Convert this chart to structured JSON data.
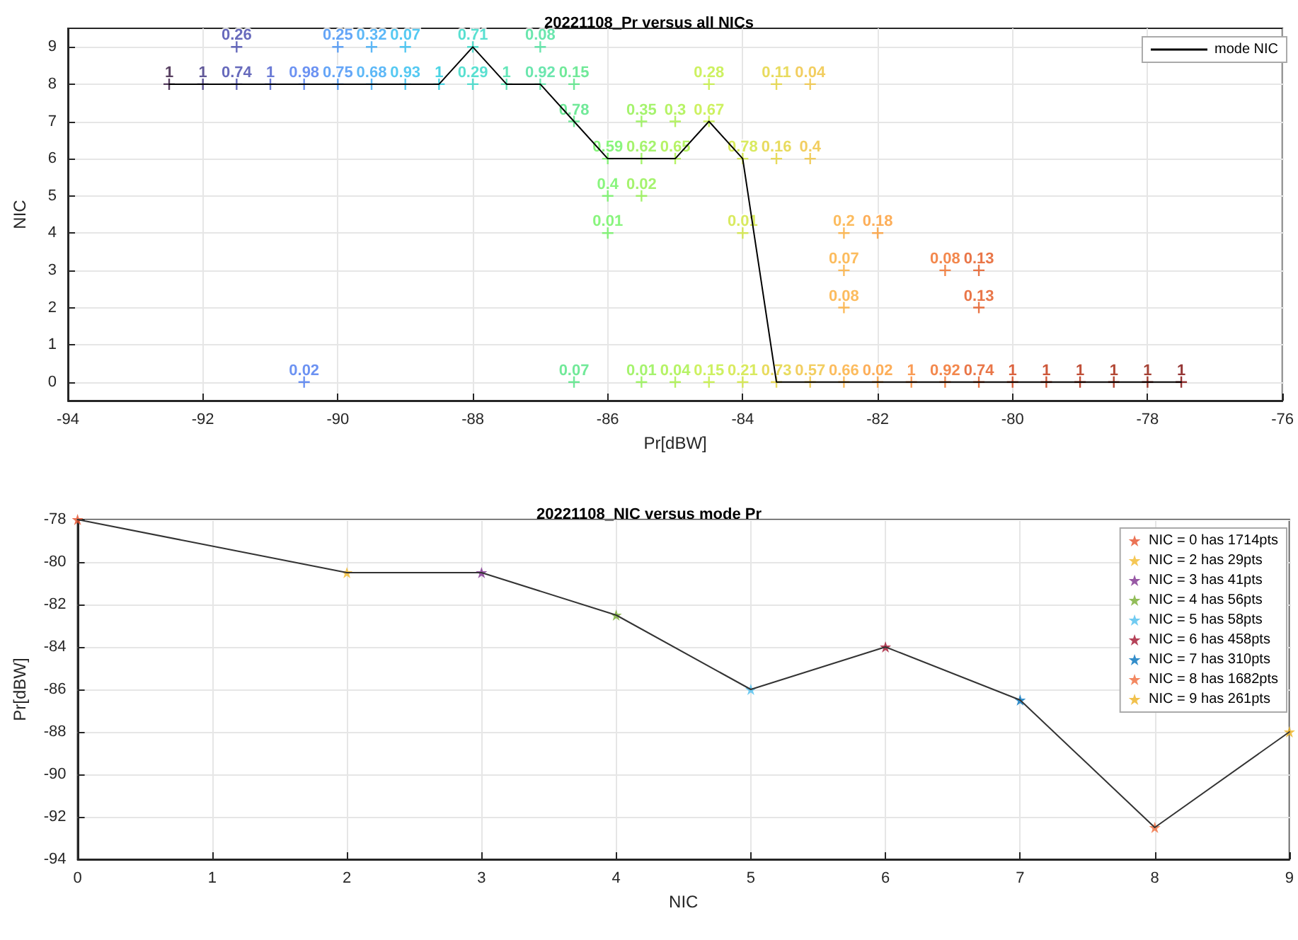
{
  "chart_data": [
    {
      "type": "scatter",
      "title": "20221108_Pr versus all NICs",
      "xlabel": "Pr[dBW]",
      "ylabel": "NIC",
      "xlim": [
        -94,
        -76
      ],
      "xticks": [
        -94,
        -92,
        -90,
        -88,
        -86,
        -84,
        -82,
        -80,
        -78,
        -76
      ],
      "ylim": [
        -0.5,
        9.5
      ],
      "yticks": [
        0,
        1,
        2,
        3,
        4,
        5,
        6,
        7,
        8,
        9
      ],
      "grid": true,
      "legend": "top right",
      "marker": "cross",
      "series": [
        {
          "type": "line",
          "name": "mode NIC",
          "color": "#000000",
          "marker": "none",
          "line_style": "solid",
          "x": [
            -92.5,
            -92,
            -91.5,
            -91,
            -90.5,
            -90,
            -89.5,
            -89,
            -88.5,
            -88,
            -87.5,
            -87,
            -86.5,
            -86,
            -85.5,
            -85,
            -84.5,
            -84,
            -83.5,
            -83,
            -82.5,
            -82,
            -81.5,
            -81,
            -80.5,
            -80,
            -79.5,
            -79,
            -78.5,
            -78,
            -77.5
          ],
          "values": [
            8,
            8,
            8,
            8,
            8,
            8,
            8,
            8,
            8,
            9,
            8,
            8,
            7,
            6,
            6,
            6,
            7,
            6,
            0,
            0,
            0,
            0,
            0,
            0,
            0,
            0,
            0,
            0,
            0,
            0,
            0
          ]
        },
        {
          "color": "#30123b",
          "x": [
            -92.5
          ],
          "values": [
            8
          ]
        },
        {
          "color": "#3b2f80",
          "x": [
            -92
          ],
          "values": [
            8
          ]
        },
        {
          "color": "#4145ab",
          "x": [
            -91.5,
            -91.5
          ],
          "values": [
            9,
            8
          ]
        },
        {
          "color": "#4559cb",
          "x": [
            -91
          ],
          "values": [
            8
          ]
        },
        {
          "color": "#4777ef",
          "x": [
            -90.5,
            -90.5
          ],
          "values": [
            8,
            0
          ]
        },
        {
          "color": "#3f8ef5",
          "x": [
            -90,
            -90
          ],
          "values": [
            9,
            8
          ]
        },
        {
          "color": "#35a6f5",
          "x": [
            -89.5,
            -89.5
          ],
          "values": [
            9,
            8
          ]
        },
        {
          "color": "#2bbbef",
          "x": [
            -89,
            -89
          ],
          "values": [
            9,
            8
          ]
        },
        {
          "color": "#1fc9dd",
          "x": [
            -88.5
          ],
          "values": [
            8
          ]
        },
        {
          "color": "#30d8c5",
          "x": [
            -88,
            -88
          ],
          "values": [
            9,
            8
          ]
        },
        {
          "color": "#3de0a8",
          "x": [
            -87.5
          ],
          "values": [
            8
          ]
        },
        {
          "color": "#46e09a",
          "x": [
            -87,
            -87
          ],
          "values": [
            9,
            8
          ]
        },
        {
          "color": "#4de47f",
          "x": [
            -86.5,
            -86.5,
            -86.5
          ],
          "values": [
            8,
            7,
            0
          ]
        },
        {
          "color": "#6cf25e",
          "x": [
            -86,
            -86,
            -86
          ],
          "values": [
            6,
            5,
            4
          ]
        },
        {
          "color": "#8ff04a",
          "x": [
            -85.5,
            -85.5,
            -85.5,
            -85.5
          ],
          "values": [
            7,
            6,
            5,
            0
          ]
        },
        {
          "color": "#a4f040",
          "x": [
            -85,
            -85,
            -85
          ],
          "values": [
            7,
            6,
            0
          ]
        },
        {
          "color": "#c0ee3a",
          "x": [
            -84.5,
            -84.5,
            -84.5
          ],
          "values": [
            8,
            7,
            0
          ]
        },
        {
          "color": "#cfe538",
          "x": [
            -84,
            -84,
            -84
          ],
          "values": [
            6,
            4,
            0
          ]
        },
        {
          "color": "#e2d236",
          "x": [
            -83.5,
            -83.5,
            -83.5
          ],
          "values": [
            8,
            6,
            0
          ]
        },
        {
          "color": "#efc23a",
          "x": [
            -83,
            -83,
            -83
          ],
          "values": [
            8,
            6,
            0
          ]
        },
        {
          "color": "#fbab36",
          "x": [
            -82.5,
            -82.5,
            -82.5,
            -82.5
          ],
          "values": [
            4,
            3,
            2,
            0
          ]
        },
        {
          "color": "#fd9a30",
          "x": [
            -82,
            -82
          ],
          "values": [
            4,
            0
          ]
        },
        {
          "color": "#f9822a",
          "x": [
            -81.5
          ],
          "values": [
            0
          ]
        },
        {
          "color": "#f06a21",
          "x": [
            -81,
            -81
          ],
          "values": [
            3,
            0
          ]
        },
        {
          "color": "#e4541a",
          "x": [
            -80.5,
            -80.5,
            -80.5
          ],
          "values": [
            3,
            2,
            0
          ]
        },
        {
          "color": "#d33c0f",
          "x": [
            -80
          ],
          "values": [
            0
          ]
        },
        {
          "color": "#c02d08",
          "x": [
            -79.5
          ],
          "values": [
            0
          ]
        },
        {
          "color": "#b02306",
          "x": [
            -79
          ],
          "values": [
            0
          ]
        },
        {
          "color": "#a01a03",
          "x": [
            -78.5
          ],
          "values": [
            0
          ]
        },
        {
          "color": "#8f1302",
          "x": [
            -78
          ],
          "values": [
            0
          ]
        },
        {
          "color": "#7a0403",
          "x": [
            -77.5
          ],
          "values": [
            0
          ]
        }
      ],
      "annotations": [
        {
          "text": "1",
          "x": -92.5,
          "y": 8
        },
        {
          "text": "1",
          "x": -92,
          "y": 8
        },
        {
          "text": "0.26",
          "x": -91.5,
          "y": 9
        },
        {
          "text": "0.74",
          "x": -91.5,
          "y": 8
        },
        {
          "text": "1",
          "x": -91,
          "y": 8
        },
        {
          "text": "0.98",
          "x": -90.5,
          "y": 8
        },
        {
          "text": "0.02",
          "x": -90.5,
          "y": 0
        },
        {
          "text": "0.25",
          "x": -90,
          "y": 9
        },
        {
          "text": "0.75",
          "x": -90,
          "y": 8
        },
        {
          "text": "0.32",
          "x": -89.5,
          "y": 9
        },
        {
          "text": "0.68",
          "x": -89.5,
          "y": 8
        },
        {
          "text": "0.07",
          "x": -89,
          "y": 9
        },
        {
          "text": "0.93",
          "x": -89,
          "y": 8
        },
        {
          "text": "1",
          "x": -88.5,
          "y": 8
        },
        {
          "text": "0.71",
          "x": -88,
          "y": 9
        },
        {
          "text": "0.29",
          "x": -88,
          "y": 8
        },
        {
          "text": "1",
          "x": -87.5,
          "y": 8
        },
        {
          "text": "0.08",
          "x": -87,
          "y": 9
        },
        {
          "text": "0.92",
          "x": -87,
          "y": 8
        },
        {
          "text": "0.15",
          "x": -86.5,
          "y": 8
        },
        {
          "text": "0.78",
          "x": -86.5,
          "y": 7
        },
        {
          "text": "0.07",
          "x": -86.5,
          "y": 0
        },
        {
          "text": "0.59",
          "x": -86,
          "y": 6
        },
        {
          "text": "0.4",
          "x": -86,
          "y": 5
        },
        {
          "text": "0.01",
          "x": -86,
          "y": 4
        },
        {
          "text": "0.35",
          "x": -85.5,
          "y": 7
        },
        {
          "text": "0.62",
          "x": -85.5,
          "y": 6
        },
        {
          "text": "0.02",
          "x": -85.5,
          "y": 5
        },
        {
          "text": "0.01",
          "x": -85.5,
          "y": 0
        },
        {
          "text": "0.3",
          "x": -85,
          "y": 7
        },
        {
          "text": "0.65",
          "x": -85,
          "y": 6
        },
        {
          "text": "0.04",
          "x": -85,
          "y": 0
        },
        {
          "text": "0.28",
          "x": -84.5,
          "y": 8
        },
        {
          "text": "0.67",
          "x": -84.5,
          "y": 7
        },
        {
          "text": "0.15",
          "x": -84.5,
          "y": 0
        },
        {
          "text": "0.78",
          "x": -84,
          "y": 6
        },
        {
          "text": "0.01",
          "x": -84,
          "y": 4
        },
        {
          "text": "0.21",
          "x": -84,
          "y": 0
        },
        {
          "text": "0.11",
          "x": -83.5,
          "y": 8
        },
        {
          "text": "0.16",
          "x": -83.5,
          "y": 6
        },
        {
          "text": "0.73",
          "x": -83.5,
          "y": 0
        },
        {
          "text": "0.04",
          "x": -83,
          "y": 8
        },
        {
          "text": "0.4",
          "x": -83,
          "y": 6
        },
        {
          "text": "0.57",
          "x": -83,
          "y": 0
        },
        {
          "text": "0.2",
          "x": -82.5,
          "y": 4
        },
        {
          "text": "0.07",
          "x": -82.5,
          "y": 3
        },
        {
          "text": "0.08",
          "x": -82.5,
          "y": 2
        },
        {
          "text": "0.66",
          "x": -82.5,
          "y": 0
        },
        {
          "text": "0.18",
          "x": -82,
          "y": 4
        },
        {
          "text": "0.02",
          "x": -82,
          "y": 0
        },
        {
          "text": "1",
          "x": -81.5,
          "y": 0
        },
        {
          "text": "0.08",
          "x": -81,
          "y": 3
        },
        {
          "text": "0.92",
          "x": -81,
          "y": 0
        },
        {
          "text": "0.13",
          "x": -80.5,
          "y": 3
        },
        {
          "text": "0.13",
          "x": -80.5,
          "y": 2
        },
        {
          "text": "0.74",
          "x": -80.5,
          "y": 0
        },
        {
          "text": "1",
          "x": -80,
          "y": 0
        },
        {
          "text": "1",
          "x": -79.5,
          "y": 0
        },
        {
          "text": "1",
          "x": -79,
          "y": 0
        },
        {
          "text": "1",
          "x": -78.5,
          "y": 0
        },
        {
          "text": "1",
          "x": -78,
          "y": 0
        },
        {
          "text": "1",
          "x": -77.5,
          "y": 0
        }
      ]
    },
    {
      "type": "scatter",
      "title": "20221108_NIC versus mode Pr",
      "xlabel": "NIC",
      "ylabel": "Pr[dBW]",
      "xlim": [
        0,
        9
      ],
      "xticks": [
        0,
        1,
        2,
        3,
        4,
        5,
        6,
        7,
        8,
        9
      ],
      "ylim": [
        -94,
        -78
      ],
      "yticks": [
        -94,
        -92,
        -90,
        -88,
        -86,
        -84,
        -82,
        -80,
        -78
      ],
      "grid": true,
      "legend": "top right",
      "marker": "star",
      "series": [
        {
          "type": "line",
          "color": "#333333",
          "marker": "none",
          "line_style": "solid",
          "x": [
            0,
            2,
            3,
            4,
            5,
            6,
            7,
            8,
            9
          ],
          "values": [
            -78,
            -80.5,
            -80.5,
            -82.5,
            -86,
            -84,
            -86.5,
            -92.5,
            -88
          ]
        },
        {
          "name": "NIC = 0 has 1714pts",
          "color": "#e6502a",
          "x": [
            0
          ],
          "values": [
            -78
          ]
        },
        {
          "name": "NIC = 2 has 29pts",
          "color": "#f3b92a",
          "x": [
            2
          ],
          "values": [
            -80.5
          ]
        },
        {
          "name": "NIC = 3 has 41pts",
          "color": "#7e2f8e",
          "x": [
            3
          ],
          "values": [
            -80.5
          ]
        },
        {
          "name": "NIC = 4 has 56pts",
          "color": "#77ac30",
          "x": [
            4
          ],
          "values": [
            -82.5
          ]
        },
        {
          "name": "NIC = 5 has 58pts",
          "color": "#4dbeee",
          "x": [
            5
          ],
          "values": [
            -86
          ]
        },
        {
          "name": "NIC = 6 has 458pts",
          "color": "#a2142f",
          "x": [
            6
          ],
          "values": [
            -84
          ]
        },
        {
          "name": "NIC = 7 has 310pts",
          "color": "#0072bd",
          "x": [
            7
          ],
          "values": [
            -86.5
          ]
        },
        {
          "name": "NIC = 8 has 1682pts",
          "color": "#f06a3a",
          "x": [
            8
          ],
          "values": [
            -92.5
          ]
        },
        {
          "name": "NIC = 9 has 261pts",
          "color": "#edb120",
          "x": [
            9
          ],
          "values": [
            -88
          ]
        }
      ]
    }
  ]
}
